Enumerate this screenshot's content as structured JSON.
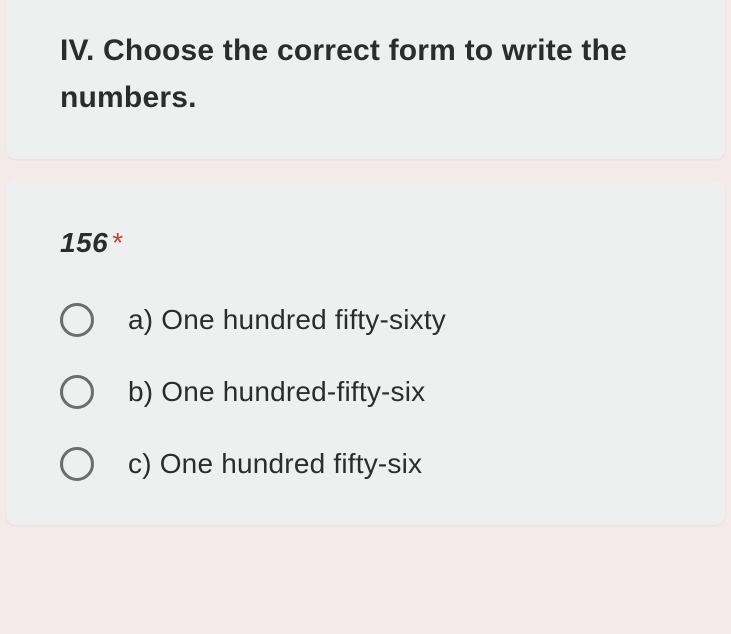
{
  "colors": {
    "page_background": "#f5eaea",
    "card_background": "#eef0ef",
    "text_primary": "#2b2d2c",
    "required_asterisk": "#c6403a",
    "radio_border": "#6b6d6c"
  },
  "typography": {
    "instruction_fontsize": 30,
    "instruction_weight": 700,
    "question_fontsize": 28,
    "question_weight": 700,
    "question_style": "italic",
    "option_fontsize": 28
  },
  "instruction_card": {
    "text": "IV. Choose the correct form to write the numbers."
  },
  "question_card": {
    "number": "156",
    "required_mark": "*",
    "options": [
      {
        "label": "a) One hundred fifty-sixty",
        "selected": false
      },
      {
        "label": "b) One hundred-fifty-six",
        "selected": false
      },
      {
        "label": "c) One hundred fifty-six",
        "selected": false
      }
    ]
  }
}
